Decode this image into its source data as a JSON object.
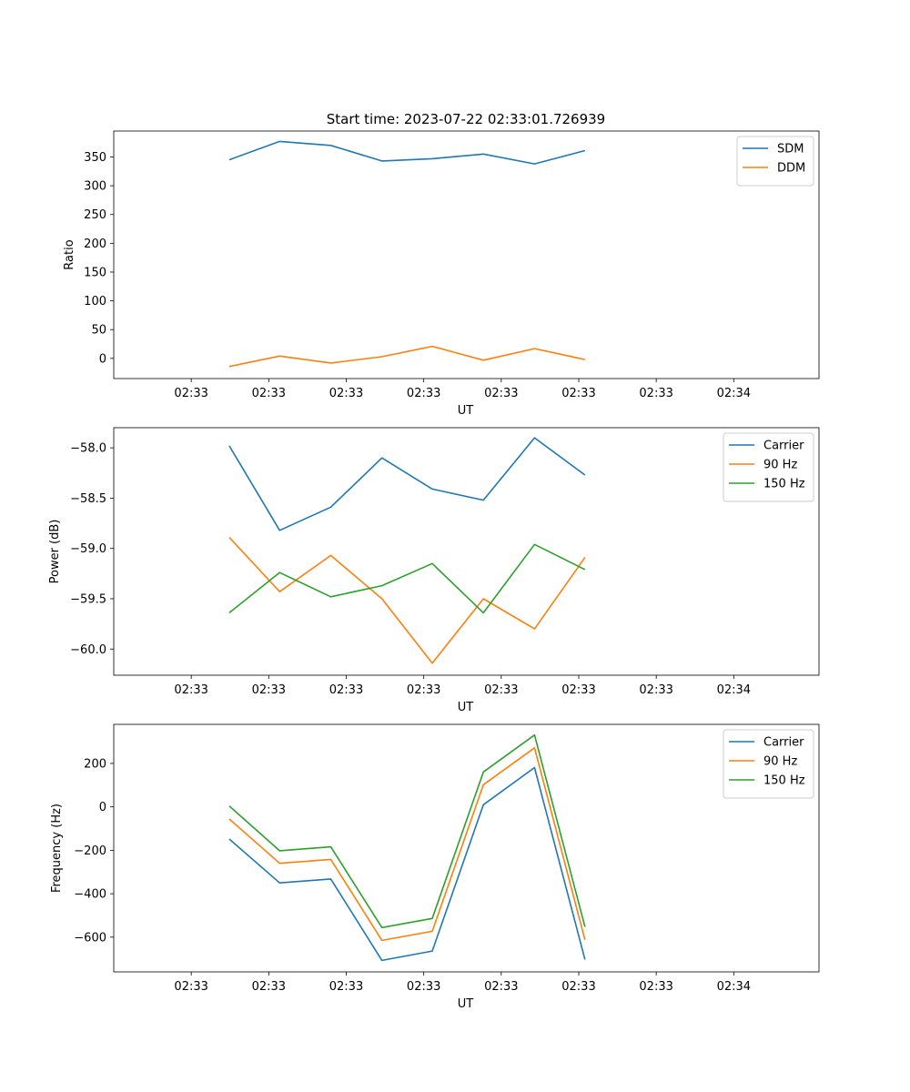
{
  "figure_title": "Start time: 2023-07-22 02:33:01.726939",
  "colors": {
    "blue": "#1f77b4",
    "orange": "#ff7f0e",
    "green": "#2ca02c"
  },
  "chart_data": [
    {
      "type": "line",
      "title": "Start time: 2023-07-22 02:33:01.726939",
      "xlabel": "UT",
      "ylabel": "Ratio",
      "x_tick_labels": [
        "02:33",
        "02:33",
        "02:33",
        "02:33",
        "02:33",
        "02:33",
        "02:33",
        "02:34"
      ],
      "x": [
        1,
        2,
        3,
        4,
        5,
        6,
        7,
        8
      ],
      "xlim": [
        0,
        9.1
      ],
      "ylim": [
        -35,
        395
      ],
      "y_ticks": [
        0,
        50,
        100,
        150,
        200,
        250,
        300,
        350
      ],
      "y_tick_labels": [
        "0",
        "50",
        "100",
        "150",
        "200",
        "250",
        "300",
        "350"
      ],
      "legend_position": "top-right",
      "series": [
        {
          "name": "SDM",
          "color": "#1f77b4",
          "values": [
            345,
            377,
            370,
            343,
            347,
            355,
            338,
            361
          ]
        },
        {
          "name": "DDM",
          "color": "#ff7f0e",
          "values": [
            -14,
            4,
            -8,
            3,
            21,
            -3,
            17,
            -2
          ]
        }
      ]
    },
    {
      "type": "line",
      "xlabel": "UT",
      "ylabel": "Power (dB)",
      "x_tick_labels": [
        "02:33",
        "02:33",
        "02:33",
        "02:33",
        "02:33",
        "02:33",
        "02:33",
        "02:34"
      ],
      "x": [
        1,
        2,
        3,
        4,
        5,
        6,
        7,
        8
      ],
      "xlim": [
        0,
        9.1
      ],
      "ylim": [
        -60.26,
        -57.8
      ],
      "y_ticks": [
        -60.0,
        -59.5,
        -59.0,
        -58.5,
        -58.0
      ],
      "y_tick_labels": [
        "−60.0",
        "−59.5",
        "−59.0",
        "−58.5",
        "−58.0"
      ],
      "legend_position": "top-right",
      "series": [
        {
          "name": "Carrier",
          "color": "#1f77b4",
          "values": [
            -57.98,
            -58.82,
            -58.59,
            -58.1,
            -58.41,
            -58.52,
            -57.9,
            -58.27
          ]
        },
        {
          "name": "90 Hz",
          "color": "#ff7f0e",
          "values": [
            -58.89,
            -59.43,
            -59.07,
            -59.5,
            -60.14,
            -59.5,
            -59.8,
            -59.09
          ]
        },
        {
          "name": "150 Hz",
          "color": "#2ca02c",
          "values": [
            -59.64,
            -59.24,
            -59.48,
            -59.37,
            -59.15,
            -59.64,
            -58.96,
            -59.21
          ]
        }
      ]
    },
    {
      "type": "line",
      "xlabel": "UT",
      "ylabel": "Frequency (Hz)",
      "x_tick_labels": [
        "02:33",
        "02:33",
        "02:33",
        "02:33",
        "02:33",
        "02:33",
        "02:33",
        "02:34"
      ],
      "x": [
        1,
        2,
        3,
        4,
        5,
        6,
        7,
        8
      ],
      "xlim": [
        0,
        9.1
      ],
      "ylim": [
        -760,
        380
      ],
      "y_ticks": [
        -600,
        -400,
        -200,
        0,
        200
      ],
      "y_tick_labels": [
        "−600",
        "−400",
        "−200",
        "0",
        "200"
      ],
      "legend_position": "top-right",
      "series": [
        {
          "name": "Carrier",
          "color": "#1f77b4",
          "values": [
            -148,
            -350,
            -332,
            -707,
            -664,
            10,
            181,
            -703
          ]
        },
        {
          "name": "90 Hz",
          "color": "#ff7f0e",
          "values": [
            -56,
            -260,
            -242,
            -615,
            -573,
            102,
            272,
            -612
          ]
        },
        {
          "name": "150 Hz",
          "color": "#2ca02c",
          "values": [
            4,
            -202,
            -184,
            -556,
            -514,
            161,
            331,
            -552
          ]
        }
      ]
    }
  ]
}
